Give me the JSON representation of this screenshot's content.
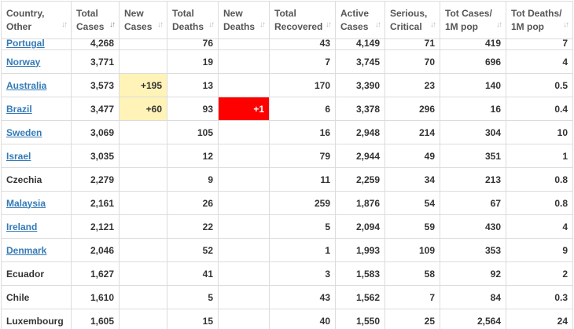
{
  "headers": [
    {
      "label": "Country,\nOther"
    },
    {
      "label": "Total\nCases",
      "active": true
    },
    {
      "label": "New\nCases"
    },
    {
      "label": "Total\nDeaths"
    },
    {
      "label": "New\nDeaths"
    },
    {
      "label": "Total\nRecovered"
    },
    {
      "label": "Active\nCases"
    },
    {
      "label": "Serious,\nCritical"
    },
    {
      "label": "Tot Cases/\n1M pop"
    },
    {
      "label": "Tot Deaths/\n1M pop"
    }
  ],
  "sort_icon": "sort-arrows-icon",
  "colors": {
    "link": "#337ab7",
    "new_cases_bg": "#fff3b8",
    "new_deaths_bg": "#ff0000"
  },
  "rows": [
    {
      "country": "Portugal",
      "link": true,
      "total_cases": "4,268",
      "new_cases": "",
      "total_deaths": "76",
      "new_deaths": "",
      "total_recovered": "43",
      "active_cases": "4,149",
      "serious": "71",
      "cases_per_m": "419",
      "deaths_per_m": "7"
    },
    {
      "country": "Norway",
      "link": true,
      "total_cases": "3,771",
      "new_cases": "",
      "total_deaths": "19",
      "new_deaths": "",
      "total_recovered": "7",
      "active_cases": "3,745",
      "serious": "70",
      "cases_per_m": "696",
      "deaths_per_m": "4"
    },
    {
      "country": "Australia",
      "link": true,
      "total_cases": "3,573",
      "new_cases": "+195",
      "total_deaths": "13",
      "new_deaths": "",
      "total_recovered": "170",
      "active_cases": "3,390",
      "serious": "23",
      "cases_per_m": "140",
      "deaths_per_m": "0.5"
    },
    {
      "country": "Brazil",
      "link": true,
      "total_cases": "3,477",
      "new_cases": "+60",
      "total_deaths": "93",
      "new_deaths": "+1",
      "total_recovered": "6",
      "active_cases": "3,378",
      "serious": "296",
      "cases_per_m": "16",
      "deaths_per_m": "0.4"
    },
    {
      "country": "Sweden",
      "link": true,
      "total_cases": "3,069",
      "new_cases": "",
      "total_deaths": "105",
      "new_deaths": "",
      "total_recovered": "16",
      "active_cases": "2,948",
      "serious": "214",
      "cases_per_m": "304",
      "deaths_per_m": "10"
    },
    {
      "country": "Israel",
      "link": true,
      "total_cases": "3,035",
      "new_cases": "",
      "total_deaths": "12",
      "new_deaths": "",
      "total_recovered": "79",
      "active_cases": "2,944",
      "serious": "49",
      "cases_per_m": "351",
      "deaths_per_m": "1"
    },
    {
      "country": "Czechia",
      "link": false,
      "total_cases": "2,279",
      "new_cases": "",
      "total_deaths": "9",
      "new_deaths": "",
      "total_recovered": "11",
      "active_cases": "2,259",
      "serious": "34",
      "cases_per_m": "213",
      "deaths_per_m": "0.8"
    },
    {
      "country": "Malaysia",
      "link": true,
      "total_cases": "2,161",
      "new_cases": "",
      "total_deaths": "26",
      "new_deaths": "",
      "total_recovered": "259",
      "active_cases": "1,876",
      "serious": "54",
      "cases_per_m": "67",
      "deaths_per_m": "0.8"
    },
    {
      "country": "Ireland",
      "link": true,
      "total_cases": "2,121",
      "new_cases": "",
      "total_deaths": "22",
      "new_deaths": "",
      "total_recovered": "5",
      "active_cases": "2,094",
      "serious": "59",
      "cases_per_m": "430",
      "deaths_per_m": "4"
    },
    {
      "country": "Denmark",
      "link": true,
      "total_cases": "2,046",
      "new_cases": "",
      "total_deaths": "52",
      "new_deaths": "",
      "total_recovered": "1",
      "active_cases": "1,993",
      "serious": "109",
      "cases_per_m": "353",
      "deaths_per_m": "9"
    },
    {
      "country": "Ecuador",
      "link": false,
      "total_cases": "1,627",
      "new_cases": "",
      "total_deaths": "41",
      "new_deaths": "",
      "total_recovered": "3",
      "active_cases": "1,583",
      "serious": "58",
      "cases_per_m": "92",
      "deaths_per_m": "2"
    },
    {
      "country": "Chile",
      "link": false,
      "total_cases": "1,610",
      "new_cases": "",
      "total_deaths": "5",
      "new_deaths": "",
      "total_recovered": "43",
      "active_cases": "1,562",
      "serious": "7",
      "cases_per_m": "84",
      "deaths_per_m": "0.3"
    },
    {
      "country": "Luxembourg",
      "link": false,
      "total_cases": "1,605",
      "new_cases": "",
      "total_deaths": "15",
      "new_deaths": "",
      "total_recovered": "40",
      "active_cases": "1,550",
      "serious": "25",
      "cases_per_m": "2,564",
      "deaths_per_m": "24"
    }
  ]
}
